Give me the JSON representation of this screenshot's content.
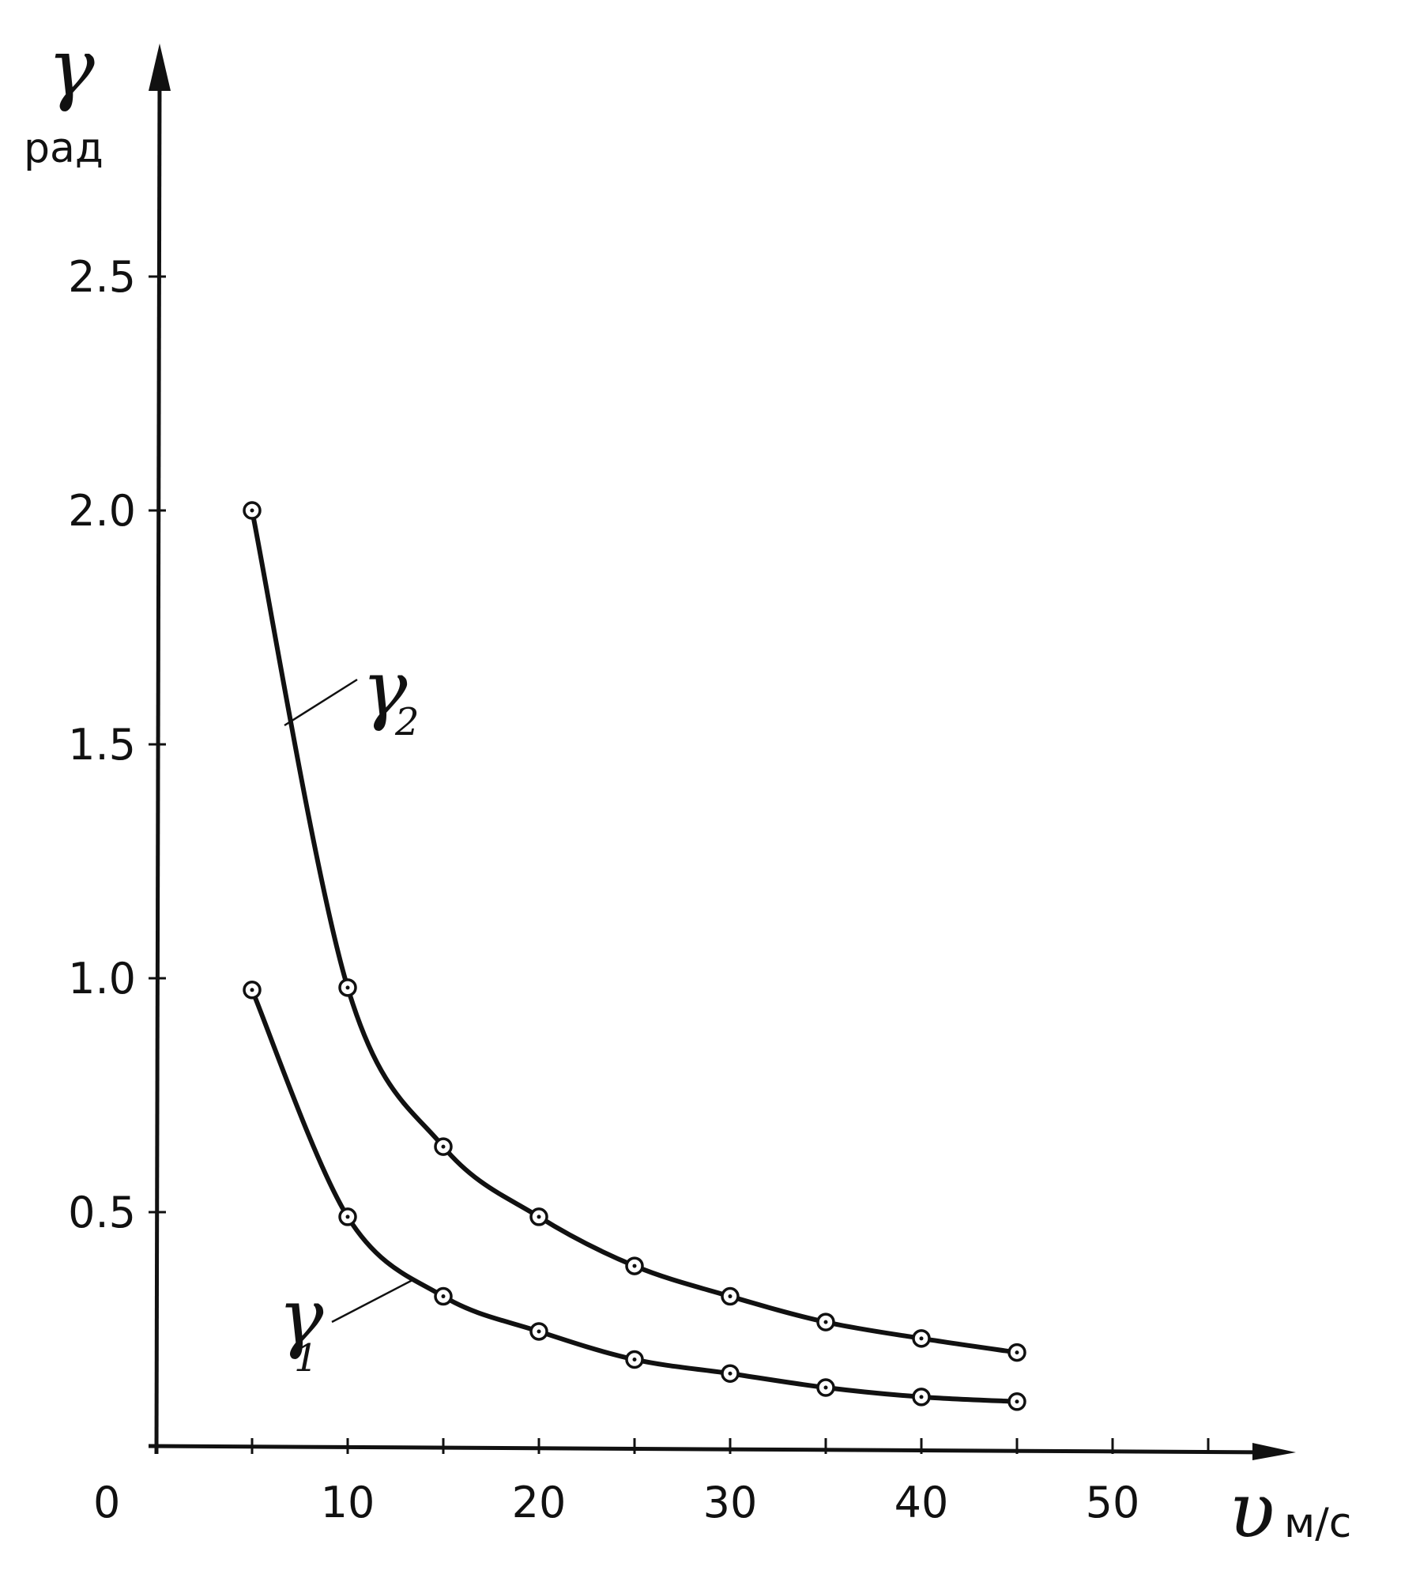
{
  "chart_data": {
    "type": "line",
    "title": "",
    "xlabel": "υ",
    "xunit": "м/с",
    "ylabel": "γ",
    "yunit": "рад",
    "origin_label": "0",
    "xlim": [
      0,
      60
    ],
    "ylim": [
      0,
      3.0
    ],
    "x_ticks": [
      10,
      20,
      30,
      40,
      50
    ],
    "x_tick_labels": [
      "10",
      "20",
      "30",
      "40",
      "50"
    ],
    "y_ticks": [
      0.5,
      1.0,
      1.5,
      2.0,
      2.5
    ],
    "y_tick_labels": [
      "0.5",
      "1.0",
      "1.5",
      "2.0",
      "2.5"
    ],
    "grid": false,
    "legend": "none",
    "series": [
      {
        "name": "γ",
        "subscript": "2",
        "x": [
          5,
          10,
          15,
          20,
          25,
          30,
          35,
          40,
          45
        ],
        "values": [
          2.0,
          0.98,
          0.64,
          0.49,
          0.385,
          0.32,
          0.265,
          0.23,
          0.2
        ]
      },
      {
        "name": "γ",
        "subscript": "1",
        "x": [
          5,
          10,
          15,
          20,
          25,
          30,
          35,
          40,
          45
        ],
        "values": [
          0.975,
          0.49,
          0.32,
          0.245,
          0.185,
          0.155,
          0.125,
          0.105,
          0.095
        ]
      }
    ]
  }
}
